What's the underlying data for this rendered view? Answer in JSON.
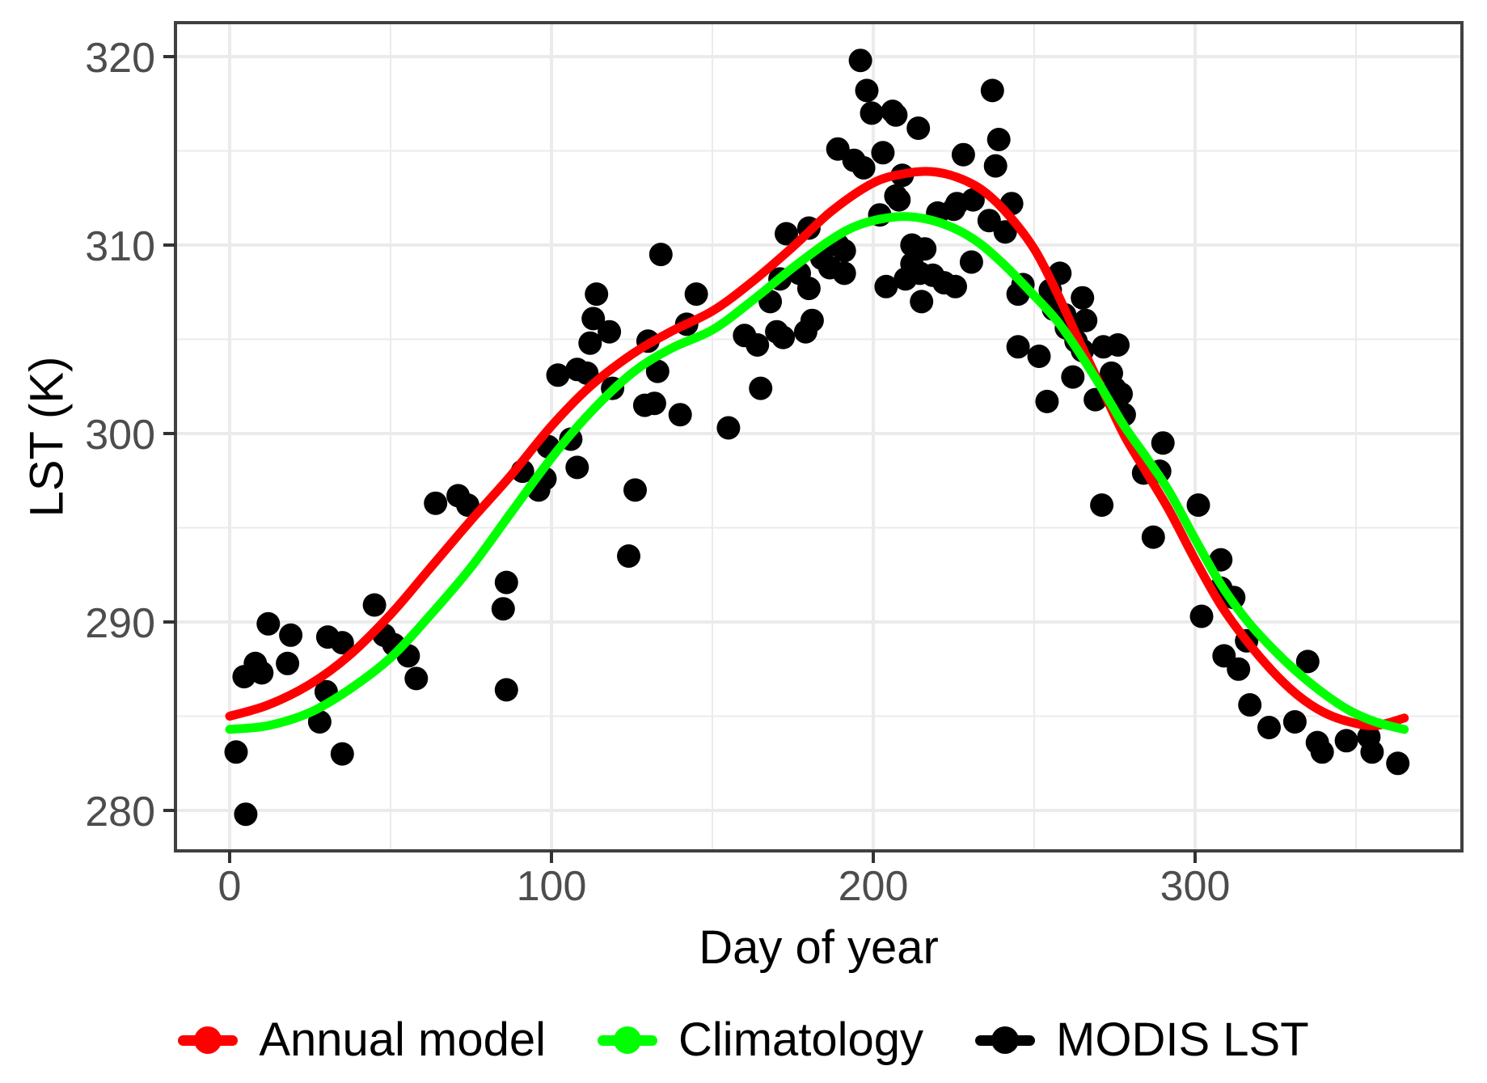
{
  "figure": {
    "background": "#FFFFFF",
    "panel_border_color": "#404040",
    "grid_color": "#EBEBEB",
    "tick_mark_color": "#333333",
    "tick_label_color": "#4D4D4D"
  },
  "axes": {
    "x": {
      "title": "Day of year",
      "tick_labels": [
        "0",
        "100",
        "200",
        "300"
      ],
      "tick_values": [
        0,
        100,
        200,
        300
      ],
      "minor_ticks": [
        50,
        150,
        250,
        350
      ],
      "range": [
        -17,
        374
      ]
    },
    "y": {
      "title": "LST (K)",
      "tick_labels": [
        "280",
        "290",
        "300",
        "310",
        "320"
      ],
      "tick_values": [
        280,
        290,
        300,
        310,
        320
      ],
      "minor_ticks": [
        285,
        295,
        305,
        315
      ],
      "range": [
        277.9,
        321.8
      ]
    }
  },
  "legend": {
    "items": [
      {
        "label": "Annual model",
        "color": "#FF0000"
      },
      {
        "label": "Climatology",
        "color": "#00FF00"
      },
      {
        "label": "MODIS LST",
        "color": "#000000"
      }
    ]
  },
  "chart_data": {
    "type": "scatter",
    "title": "",
    "xlabel": "Day of year",
    "ylabel": "LST (K)",
    "xlim": [
      -17,
      374
    ],
    "ylim": [
      277.9,
      321.8
    ],
    "grid": true,
    "legend_position": "bottom",
    "series": [
      {
        "name": "MODIS LST",
        "type": "scatter",
        "color": "#000000",
        "points": [
          [
            2,
            283.1
          ],
          [
            4.5,
            287.1
          ],
          [
            5,
            279.8
          ],
          [
            8,
            287.8
          ],
          [
            10,
            287.3
          ],
          [
            12,
            289.9
          ],
          [
            18,
            287.8
          ],
          [
            19,
            289.3
          ],
          [
            28,
            284.7
          ],
          [
            30,
            286.3
          ],
          [
            30.5,
            289.2
          ],
          [
            35,
            288.9
          ],
          [
            35,
            283.0
          ],
          [
            45,
            290.9
          ],
          [
            48,
            289.3
          ],
          [
            51,
            288.8
          ],
          [
            55.5,
            288.2
          ],
          [
            58,
            287.0
          ],
          [
            64,
            296.3
          ],
          [
            71,
            296.7
          ],
          [
            74,
            296.2
          ],
          [
            85,
            290.7
          ],
          [
            86,
            292.1
          ],
          [
            86,
            286.4
          ],
          [
            91,
            298.0
          ],
          [
            96,
            297.0
          ],
          [
            98,
            297.6
          ],
          [
            99,
            299.3
          ],
          [
            102,
            303.1
          ],
          [
            106,
            299.7
          ],
          [
            108,
            298.2
          ],
          [
            108,
            303.4
          ],
          [
            111,
            303.2
          ],
          [
            112,
            304.8
          ],
          [
            113,
            306.1
          ],
          [
            114,
            307.4
          ],
          [
            118,
            305.4
          ],
          [
            119,
            302.4
          ],
          [
            124,
            293.5
          ],
          [
            126,
            297.0
          ],
          [
            129,
            301.5
          ],
          [
            130,
            304.9
          ],
          [
            132,
            301.6
          ],
          [
            133,
            303.3
          ],
          [
            134,
            309.5
          ],
          [
            140,
            301.0
          ],
          [
            142,
            305.8
          ],
          [
            145,
            307.4
          ],
          [
            155,
            300.3
          ],
          [
            160,
            305.2
          ],
          [
            164,
            304.7
          ],
          [
            165,
            302.4
          ],
          [
            168,
            307.0
          ],
          [
            170,
            305.4
          ],
          [
            171,
            308.2
          ],
          [
            172,
            305.1
          ],
          [
            173,
            310.6
          ],
          [
            177,
            308.5
          ],
          [
            179,
            305.4
          ],
          [
            180,
            310.9
          ],
          [
            180,
            307.7
          ],
          [
            181,
            306.0
          ],
          [
            184,
            309.3
          ],
          [
            186.5,
            308.8
          ],
          [
            189,
            315.1
          ],
          [
            189,
            310.0
          ],
          [
            191,
            309.7
          ],
          [
            191,
            308.5
          ],
          [
            194,
            314.5
          ],
          [
            196,
            319.8
          ],
          [
            197,
            314.1
          ],
          [
            198,
            318.2
          ],
          [
            199.5,
            317.0
          ],
          [
            202,
            311.6
          ],
          [
            203,
            314.9
          ],
          [
            204,
            307.8
          ],
          [
            206,
            317.1
          ],
          [
            207,
            316.9
          ],
          [
            207,
            312.6
          ],
          [
            208,
            312.4
          ],
          [
            209,
            313.7
          ],
          [
            210,
            308.2
          ],
          [
            212,
            310.0
          ],
          [
            212,
            309.0
          ],
          [
            214,
            316.2
          ],
          [
            214.5,
            308.5
          ],
          [
            215,
            307.0
          ],
          [
            216,
            309.8
          ],
          [
            218.5,
            308.4
          ],
          [
            220,
            311.7
          ],
          [
            222,
            308.0
          ],
          [
            225,
            311.9
          ],
          [
            225.5,
            307.8
          ],
          [
            226,
            312.2
          ],
          [
            228,
            314.8
          ],
          [
            230.5,
            309.1
          ],
          [
            231,
            312.4
          ],
          [
            236,
            311.3
          ],
          [
            237,
            318.2
          ],
          [
            238,
            314.2
          ],
          [
            239,
            315.6
          ],
          [
            241,
            310.7
          ],
          [
            243,
            312.2
          ],
          [
            245,
            307.4
          ],
          [
            245,
            304.6
          ],
          [
            246.5,
            307.9
          ],
          [
            251.5,
            304.1
          ],
          [
            254,
            301.7
          ],
          [
            255,
            307.6
          ],
          [
            256,
            306.6
          ],
          [
            258,
            308.5
          ],
          [
            259.5,
            306.3
          ],
          [
            260,
            305.6
          ],
          [
            262,
            303.0
          ],
          [
            263,
            304.9
          ],
          [
            265,
            307.2
          ],
          [
            265,
            304.4
          ],
          [
            266,
            306.0
          ],
          [
            269,
            301.8
          ],
          [
            271,
            296.2
          ],
          [
            271.5,
            304.6
          ],
          [
            274,
            303.2
          ],
          [
            275,
            302.4
          ],
          [
            276,
            304.7
          ],
          [
            277,
            302.1
          ],
          [
            278,
            301.0
          ],
          [
            284,
            297.9
          ],
          [
            287,
            294.5
          ],
          [
            289,
            298.0
          ],
          [
            290,
            299.5
          ],
          [
            301,
            296.2
          ],
          [
            302,
            290.3
          ],
          [
            308,
            293.3
          ],
          [
            308,
            291.8
          ],
          [
            309,
            288.2
          ],
          [
            312,
            291.3
          ],
          [
            313.5,
            287.5
          ],
          [
            316,
            289.0
          ],
          [
            317,
            285.6
          ],
          [
            323,
            284.4
          ],
          [
            331,
            284.7
          ],
          [
            335,
            287.9
          ],
          [
            338,
            283.6
          ],
          [
            339.5,
            283.1
          ],
          [
            347,
            283.7
          ],
          [
            354,
            283.9
          ],
          [
            355,
            283.1
          ],
          [
            363,
            282.5
          ]
        ]
      },
      {
        "name": "Annual model",
        "type": "line",
        "color": "#FF0000",
        "points": [
          [
            0,
            285.0
          ],
          [
            12,
            285.6
          ],
          [
            25,
            286.7
          ],
          [
            37,
            288.2
          ],
          [
            50,
            290.4
          ],
          [
            62,
            292.8
          ],
          [
            75,
            295.4
          ],
          [
            87,
            297.7
          ],
          [
            100,
            300.4
          ],
          [
            112,
            302.5
          ],
          [
            125,
            304.2
          ],
          [
            137,
            305.4
          ],
          [
            150,
            306.5
          ],
          [
            162,
            308.0
          ],
          [
            175,
            309.9
          ],
          [
            187,
            311.8
          ],
          [
            200,
            313.3
          ],
          [
            210,
            313.8
          ],
          [
            218,
            313.9
          ],
          [
            226,
            313.6
          ],
          [
            234,
            312.9
          ],
          [
            242,
            311.6
          ],
          [
            250,
            309.8
          ],
          [
            257,
            307.5
          ],
          [
            264,
            304.9
          ],
          [
            271,
            302.4
          ],
          [
            278,
            299.9
          ],
          [
            285,
            297.9
          ],
          [
            292,
            295.9
          ],
          [
            300,
            293.3
          ],
          [
            308,
            290.9
          ],
          [
            316,
            289.0
          ],
          [
            324,
            287.4
          ],
          [
            332,
            286.1
          ],
          [
            340,
            285.2
          ],
          [
            348,
            284.7
          ],
          [
            356,
            284.5
          ],
          [
            365,
            284.9
          ]
        ]
      },
      {
        "name": "Climatology",
        "type": "line",
        "color": "#00FF00",
        "points": [
          [
            0,
            284.3
          ],
          [
            12,
            284.5
          ],
          [
            25,
            285.2
          ],
          [
            37,
            286.4
          ],
          [
            50,
            288.1
          ],
          [
            62,
            290.3
          ],
          [
            75,
            292.9
          ],
          [
            87,
            295.7
          ],
          [
            100,
            298.7
          ],
          [
            112,
            301.1
          ],
          [
            125,
            303.2
          ],
          [
            137,
            304.5
          ],
          [
            150,
            305.5
          ],
          [
            162,
            307.0
          ],
          [
            175,
            308.8
          ],
          [
            187,
            310.3
          ],
          [
            196,
            311.1
          ],
          [
            207,
            311.5
          ],
          [
            216,
            311.4
          ],
          [
            225,
            310.9
          ],
          [
            233,
            310.1
          ],
          [
            241,
            308.9
          ],
          [
            249,
            307.5
          ],
          [
            257,
            306.0
          ],
          [
            264,
            304.3
          ],
          [
            271,
            302.4
          ],
          [
            278,
            300.4
          ],
          [
            285,
            298.7
          ],
          [
            292,
            296.9
          ],
          [
            300,
            294.4
          ],
          [
            308,
            292.0
          ],
          [
            316,
            290.1
          ],
          [
            324,
            288.6
          ],
          [
            332,
            287.3
          ],
          [
            340,
            286.2
          ],
          [
            348,
            285.3
          ],
          [
            356,
            284.7
          ],
          [
            365,
            284.3
          ]
        ]
      }
    ]
  }
}
